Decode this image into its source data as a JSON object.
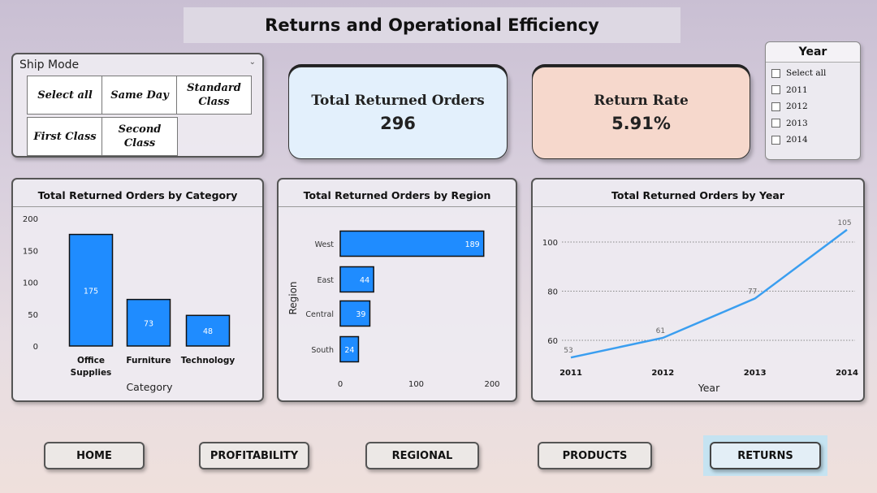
{
  "page_title": "Returns and Operational Efficiency",
  "ship_mode": {
    "title": "Ship Mode",
    "options": [
      "Select all",
      "Same Day",
      "Standard Class",
      "First Class",
      "Second Class"
    ]
  },
  "kpis": {
    "returned_label": "Total Returned Orders",
    "returned_value": "296",
    "rate_label": "Return Rate",
    "rate_value": "5.91%"
  },
  "year_slicer": {
    "title": "Year",
    "options": [
      "Select all",
      "2011",
      "2012",
      "2013",
      "2014"
    ]
  },
  "colors": {
    "bar": "#1f8cff",
    "line": "#3a9ef0",
    "kpi_blue": "#e3f0fc",
    "kpi_orange": "#f6d8cc"
  },
  "chart_data": [
    {
      "type": "bar",
      "title": "Total Returned Orders by Category",
      "categories": [
        "Office Supplies",
        "Furniture",
        "Technology"
      ],
      "values": [
        175,
        73,
        48
      ],
      "xlabel": "Category",
      "ylabel": "",
      "ylim": [
        0,
        200
      ],
      "yticks": [
        "0",
        "50",
        "100",
        "150",
        "200"
      ]
    },
    {
      "type": "bar",
      "orientation": "horizontal",
      "title": "Total Returned Orders by Region",
      "categories": [
        "West",
        "East",
        "Central",
        "South"
      ],
      "values": [
        189,
        44,
        39,
        24
      ],
      "xlabel": "",
      "ylabel": "Region",
      "xlim": [
        0,
        200
      ],
      "xticks": [
        "0",
        "100",
        "200"
      ]
    },
    {
      "type": "line",
      "title": "Total Returned Orders by Year",
      "x": [
        "2011",
        "2012",
        "2013",
        "2014"
      ],
      "values": [
        53,
        61,
        77,
        105
      ],
      "xlabel": "Year",
      "ylabel": "",
      "ylim": [
        48,
        107
      ],
      "yticks": [
        "60",
        "80",
        "100"
      ],
      "grid": true
    }
  ],
  "nav": [
    "HOME",
    "PROFITABILITY",
    "REGIONAL",
    "PRODUCTS",
    "RETURNS"
  ]
}
